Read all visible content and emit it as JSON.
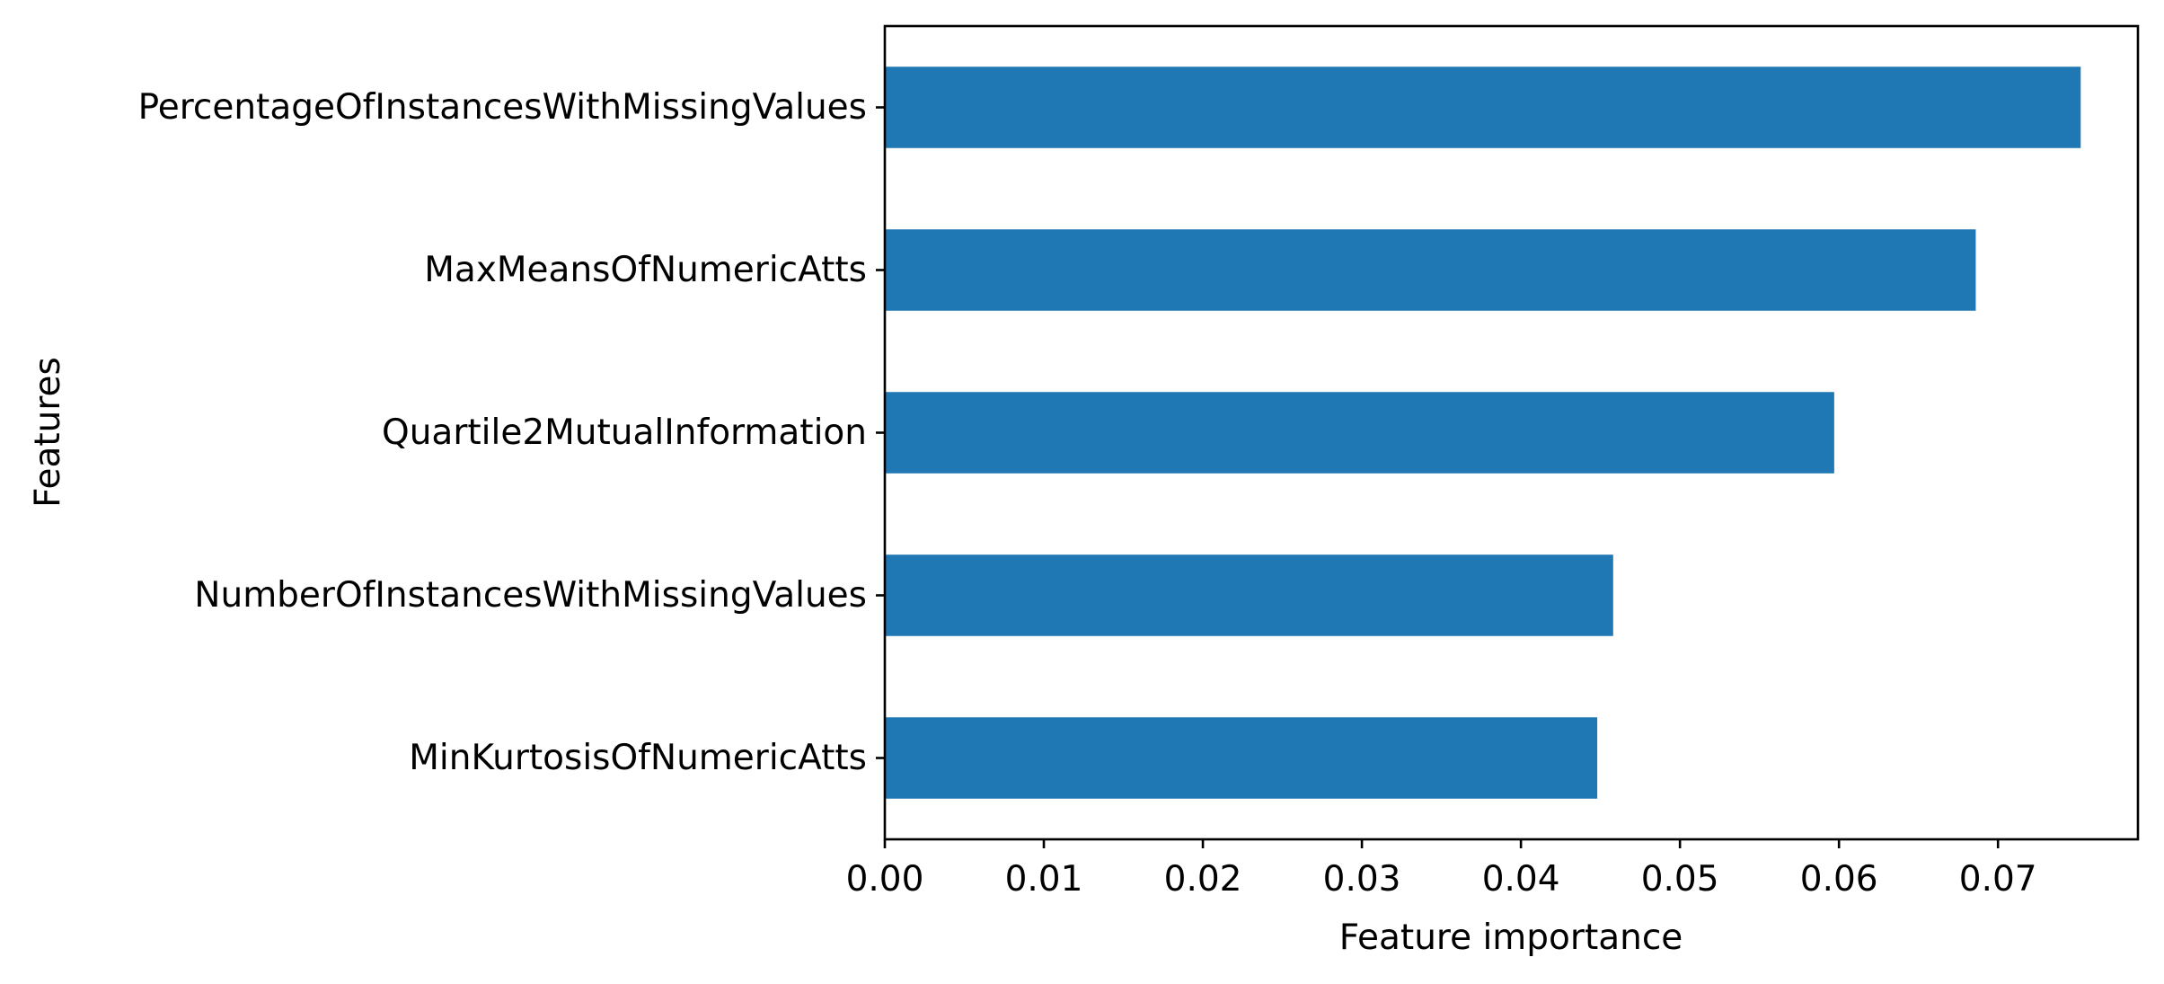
{
  "chart_data": {
    "type": "bar",
    "orientation": "horizontal",
    "categories": [
      "PercentageOfInstancesWithMissingValues",
      "MaxMeansOfNumericAtts",
      "Quartile2MutualInformation",
      "NumberOfInstancesWithMissingValues",
      "MinKurtosisOfNumericAtts"
    ],
    "values": [
      0.0752,
      0.0686,
      0.0597,
      0.0458,
      0.0448
    ],
    "xlabel": "Feature importance",
    "ylabel": "Features",
    "xlim": [
      0,
      0.0788
    ],
    "xticks": [
      "0.00",
      "0.01",
      "0.02",
      "0.03",
      "0.04",
      "0.05",
      "0.06",
      "0.07"
    ],
    "grid": false,
    "bar_color": "#1f77b4"
  }
}
